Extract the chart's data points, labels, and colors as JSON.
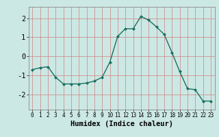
{
  "x": [
    0,
    1,
    2,
    3,
    4,
    5,
    6,
    7,
    8,
    9,
    10,
    11,
    12,
    13,
    14,
    15,
    16,
    17,
    18,
    19,
    20,
    21,
    22,
    23
  ],
  "y": [
    -0.7,
    -0.6,
    -0.55,
    -1.1,
    -1.45,
    -1.45,
    -1.45,
    -1.4,
    -1.3,
    -1.1,
    -0.3,
    1.05,
    1.45,
    1.45,
    2.1,
    1.9,
    1.55,
    1.15,
    0.2,
    -0.8,
    -1.7,
    -1.75,
    -2.35,
    -2.35
  ],
  "xlim": [
    -0.5,
    23.5
  ],
  "ylim": [
    -2.8,
    2.6
  ],
  "yticks": [
    -2,
    -1,
    0,
    1,
    2
  ],
  "xticks": [
    0,
    1,
    2,
    3,
    4,
    5,
    6,
    7,
    8,
    9,
    10,
    11,
    12,
    13,
    14,
    15,
    16,
    17,
    18,
    19,
    20,
    21,
    22,
    23
  ],
  "xlabel": "Humidex (Indice chaleur)",
  "line_color": "#1a7060",
  "marker": "D",
  "marker_size": 2.0,
  "bg_color": "#cce8e4",
  "grid_color": "#d08080",
  "xlabel_fontsize": 7.5,
  "ytick_fontsize": 7.5,
  "xtick_fontsize": 5.5
}
